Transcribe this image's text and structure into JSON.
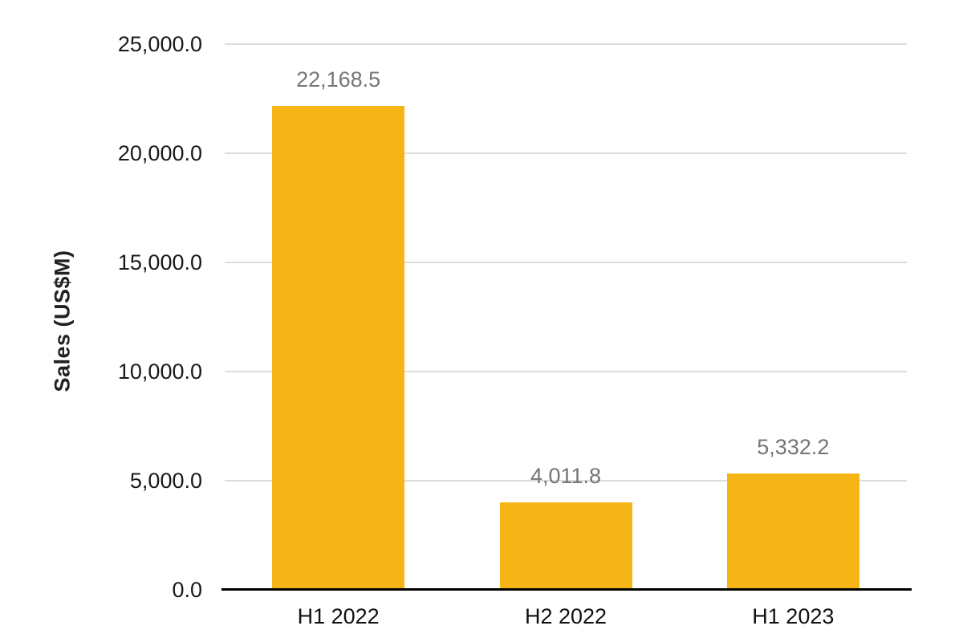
{
  "chart_data": {
    "type": "bar",
    "title": "",
    "xlabel": "",
    "ylabel": "Sales (US$M)",
    "categories": [
      "H1 2022",
      "H2 2022",
      "H1 2023"
    ],
    "values": [
      22168.5,
      4011.8,
      5332.2
    ],
    "value_labels": [
      "22,168.5",
      "4,011.8",
      "5,332.2"
    ],
    "ylim": [
      0,
      25000
    ],
    "yticks": [
      0,
      5000,
      10000,
      15000,
      20000,
      25000
    ],
    "ytick_labels": [
      "0.0",
      "5,000.0",
      "10,000.0",
      "15,000.0",
      "20,000.0",
      "25,000.0"
    ],
    "grid": true,
    "legend": "none",
    "colors": {
      "bar": "#F5B517",
      "gridline": "#dcdcdc",
      "axis": "#000000",
      "data_label": "#757575",
      "tick_label": "#1a1a1a"
    }
  }
}
